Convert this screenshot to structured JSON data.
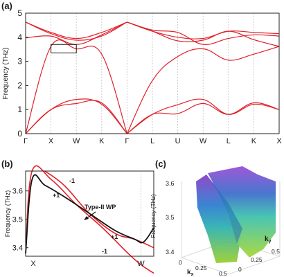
{
  "panel_labels": {
    "a": "(a)",
    "b": "(b)",
    "c": "(c)"
  },
  "colors": {
    "red": "#e0202a",
    "black": "#111111",
    "grid": "#b8b8b8",
    "axis": "#222222"
  },
  "chart_data": [
    {
      "type": "line",
      "panel": "a",
      "title": "",
      "ylabel": "Frequency (THz)",
      "ylim": [
        0,
        5
      ],
      "y_ticks": [
        0,
        1,
        2,
        3,
        4,
        5
      ],
      "x_ticks": [
        "Γ",
        "X",
        "W",
        "K",
        "Γ",
        "L",
        "U",
        "W",
        "L",
        "K",
        "X"
      ],
      "highlight_box": {
        "x_range": [
          "X",
          "W"
        ],
        "y_range": [
          3.35,
          3.7
        ]
      },
      "series": [
        {
          "points": [
            [
              "Γ",
              0
            ],
            [
              "X",
              1.0
            ],
            [
              "W",
              1.25
            ],
            [
              "K",
              1.28
            ],
            [
              "Γ",
              0
            ]
          ]
        },
        {
          "points": [
            [
              "Γ",
              0
            ],
            [
              "X",
              1.0
            ],
            [
              "W",
              1.42
            ],
            [
              "K",
              1.22
            ],
            [
              "Γ",
              0
            ]
          ]
        },
        {
          "points": [
            [
              "Γ",
              0
            ],
            [
              "X",
              3.62
            ],
            [
              "W",
              3.52
            ],
            [
              "K",
              3.3
            ],
            [
              "Γ",
              0
            ]
          ]
        },
        {
          "points": [
            [
              "Γ",
              4.63
            ],
            [
              "X",
              4.15
            ],
            [
              "W",
              3.88
            ],
            [
              "K",
              4.05
            ],
            [
              "Γ",
              4.63
            ]
          ]
        },
        {
          "points": [
            [
              "Γ",
              4.63
            ],
            [
              "X",
              4.2
            ],
            [
              "W",
              3.95
            ],
            [
              "K",
              4.2
            ],
            [
              "Γ",
              4.63
            ]
          ]
        },
        {
          "points": [
            [
              "Γ",
              3.97
            ],
            [
              "X",
              4.05
            ],
            [
              "W",
              3.7
            ],
            [
              "K",
              4.1
            ],
            [
              "Γ",
              4.63
            ]
          ]
        },
        {
          "points": [
            [
              "Γ",
              0
            ],
            [
              "L",
              0.8
            ],
            [
              "U",
              0.83
            ],
            [
              "W",
              1.25
            ],
            [
              "L",
              0.8
            ],
            [
              "K",
              1.28
            ],
            [
              "X",
              1.0
            ]
          ]
        },
        {
          "points": [
            [
              "Γ",
              0
            ],
            [
              "L",
              0.8
            ],
            [
              "U",
              1.2
            ],
            [
              "W",
              1.42
            ],
            [
              "L",
              0.8
            ],
            [
              "K",
              1.22
            ],
            [
              "X",
              1.0
            ]
          ]
        },
        {
          "points": [
            [
              "Γ",
              0
            ],
            [
              "L",
              2.2
            ],
            [
              "U",
              3.2
            ],
            [
              "W",
              3.52
            ],
            [
              "L",
              3.05
            ],
            [
              "K",
              3.3
            ],
            [
              "X",
              3.62
            ]
          ]
        },
        {
          "points": [
            [
              "Γ",
              4.63
            ],
            [
              "L",
              4.25
            ],
            [
              "U",
              3.85
            ],
            [
              "W",
              3.88
            ],
            [
              "L",
              4.25
            ],
            [
              "K",
              3.9
            ],
            [
              "X",
              3.62
            ]
          ]
        },
        {
          "points": [
            [
              "Γ",
              4.63
            ],
            [
              "L",
              4.25
            ],
            [
              "U",
              4.0
            ],
            [
              "W",
              3.95
            ],
            [
              "L",
              4.25
            ],
            [
              "K",
              4.2
            ],
            [
              "X",
              4.15
            ]
          ]
        },
        {
          "points": [
            [
              "Γ",
              4.63
            ],
            [
              "L",
              4.3
            ],
            [
              "U",
              4.2
            ],
            [
              "W",
              3.7
            ],
            [
              "L",
              3.95
            ],
            [
              "K",
              4.1
            ],
            [
              "X",
              4.05
            ]
          ]
        }
      ]
    },
    {
      "type": "line",
      "panel": "b",
      "ylabel": "Frequency (THz)",
      "ylim": [
        3.37,
        3.67
      ],
      "y_ticks": [
        3.4,
        3.5,
        3.6
      ],
      "x_ticks": [
        "X",
        "W"
      ],
      "annotations": {
        "red_upper": "-1",
        "black_upper": "+1",
        "crossing": "Type-II WP",
        "black_lower": "+1",
        "red_lower": "-1"
      },
      "series": [
        {
          "color": "red",
          "x": [
            0,
            0.05,
            0.2,
            0.4,
            0.6,
            0.8,
            0.9,
            1.0
          ],
          "y": [
            3.38,
            3.67,
            3.64,
            3.55,
            3.47,
            3.38,
            3.34,
            3.31
          ]
        },
        {
          "color": "red",
          "x": [
            0.15,
            0.3,
            0.5,
            0.7,
            0.85,
            1.0
          ],
          "y": [
            3.67,
            3.62,
            3.52,
            3.45,
            3.43,
            3.4
          ]
        },
        {
          "color": "black",
          "x": [
            0,
            0.05,
            0.15,
            0.3,
            0.5,
            0.7,
            0.85,
            0.92,
            1.0
          ],
          "y": [
            3.38,
            3.64,
            3.62,
            3.58,
            3.52,
            3.46,
            3.43,
            3.42,
            3.47
          ]
        }
      ]
    },
    {
      "type": "surface3d",
      "panel": "c",
      "zlabel": "Frequency (THz)",
      "z_ticks": [
        "3.6",
        "3.5",
        "3.4"
      ],
      "kx_label": "k",
      "kx_sub": "x",
      "ky_label": "k",
      "ky_sub": "y",
      "kx_ticks": [
        "0",
        "0.25",
        "0.5"
      ],
      "ky_ticks": [
        "0",
        "0.25",
        "0.5"
      ]
    }
  ]
}
